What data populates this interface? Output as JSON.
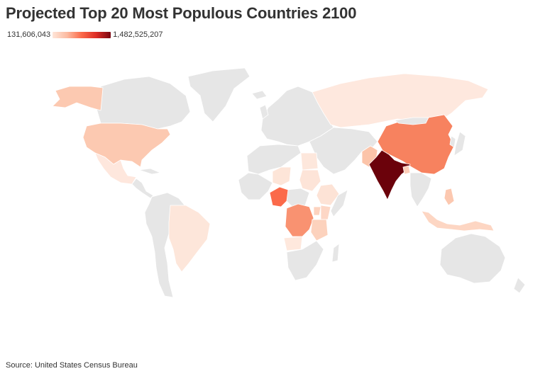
{
  "title": "Projected Top 20 Most Populous Countries 2100",
  "legend": {
    "min_label": "131,606,043",
    "max_label": "1,482,525,207",
    "color_min": "#fee5d9",
    "color_max": "#7a0510"
  },
  "source": "Source: United States Census Bureau",
  "colors": {
    "no_data": "#e6e6e6",
    "border": "#ffffff",
    "india": "#6b020b",
    "china": "#f7825f",
    "nigeria": "#fb6a4a",
    "dr_congo": "#f99271",
    "usa": "#fcc9b1",
    "pakistan": "#fcc4a9",
    "ethiopia": "#fde3d6",
    "tanzania": "#fcd2bd",
    "indonesia": "#fdd6c3",
    "philippines": "#fcc8b0",
    "brazil": "#fde6da",
    "russia": "#fee8de",
    "egypt": "#fde7dc",
    "niger": "#fde5d8",
    "sudan": "#fde4d8",
    "uganda": "#fdd3bf",
    "kenya": "#fdd7c6",
    "bangladesh": "#fdceb8",
    "mexico": "#fee7dd",
    "angola": "#fee8dd"
  }
}
